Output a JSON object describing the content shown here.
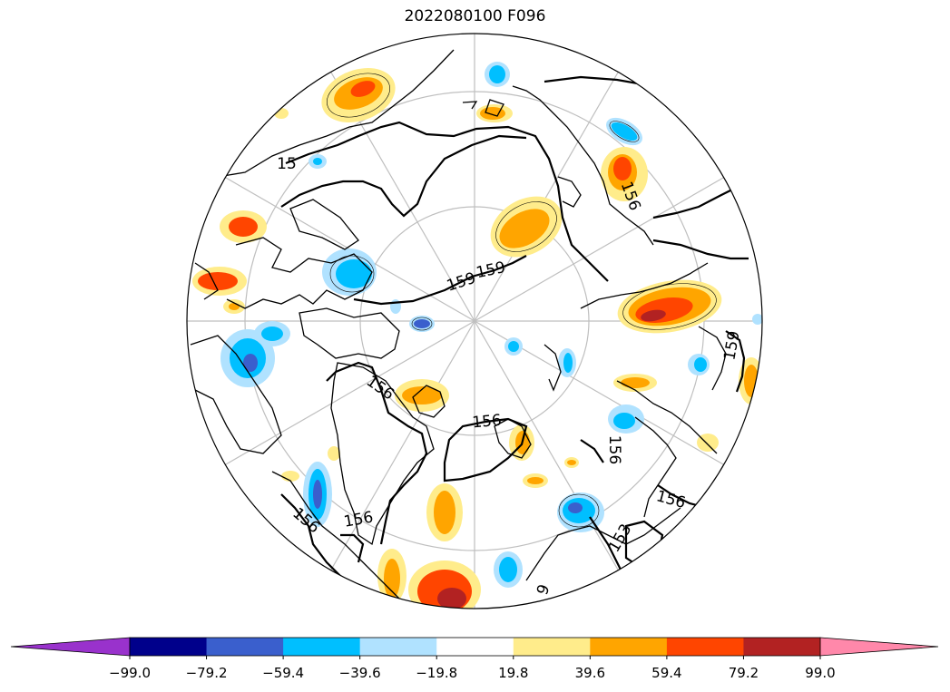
{
  "title": "2022080100 F096",
  "map": {
    "projection": "north-polar-stereographic",
    "graticule": "on",
    "contour_labels": [
      "159",
      "159",
      "159",
      "156",
      "156",
      "156",
      "156",
      "156",
      "156",
      "156",
      "153",
      "159",
      "15",
      "9"
    ]
  },
  "colorbar": {
    "extend": "both",
    "under_color": "#9932cc",
    "over_color": "#ff88aa",
    "bins": [
      {
        "color": "#00008b"
      },
      {
        "color": "#3a5fcd"
      },
      {
        "color": "#00bfff"
      },
      {
        "color": "#b0e2ff"
      },
      {
        "color": "#ffffff"
      },
      {
        "color": "#ffec8b"
      },
      {
        "color": "#ffa500"
      },
      {
        "color": "#ff4500"
      },
      {
        "color": "#b22222"
      }
    ],
    "ticks": [
      "−99.0",
      "−79.2",
      "−59.4",
      "−39.6",
      "−19.8",
      "19.8",
      "39.6",
      "59.4",
      "79.2",
      "99.0"
    ]
  }
}
